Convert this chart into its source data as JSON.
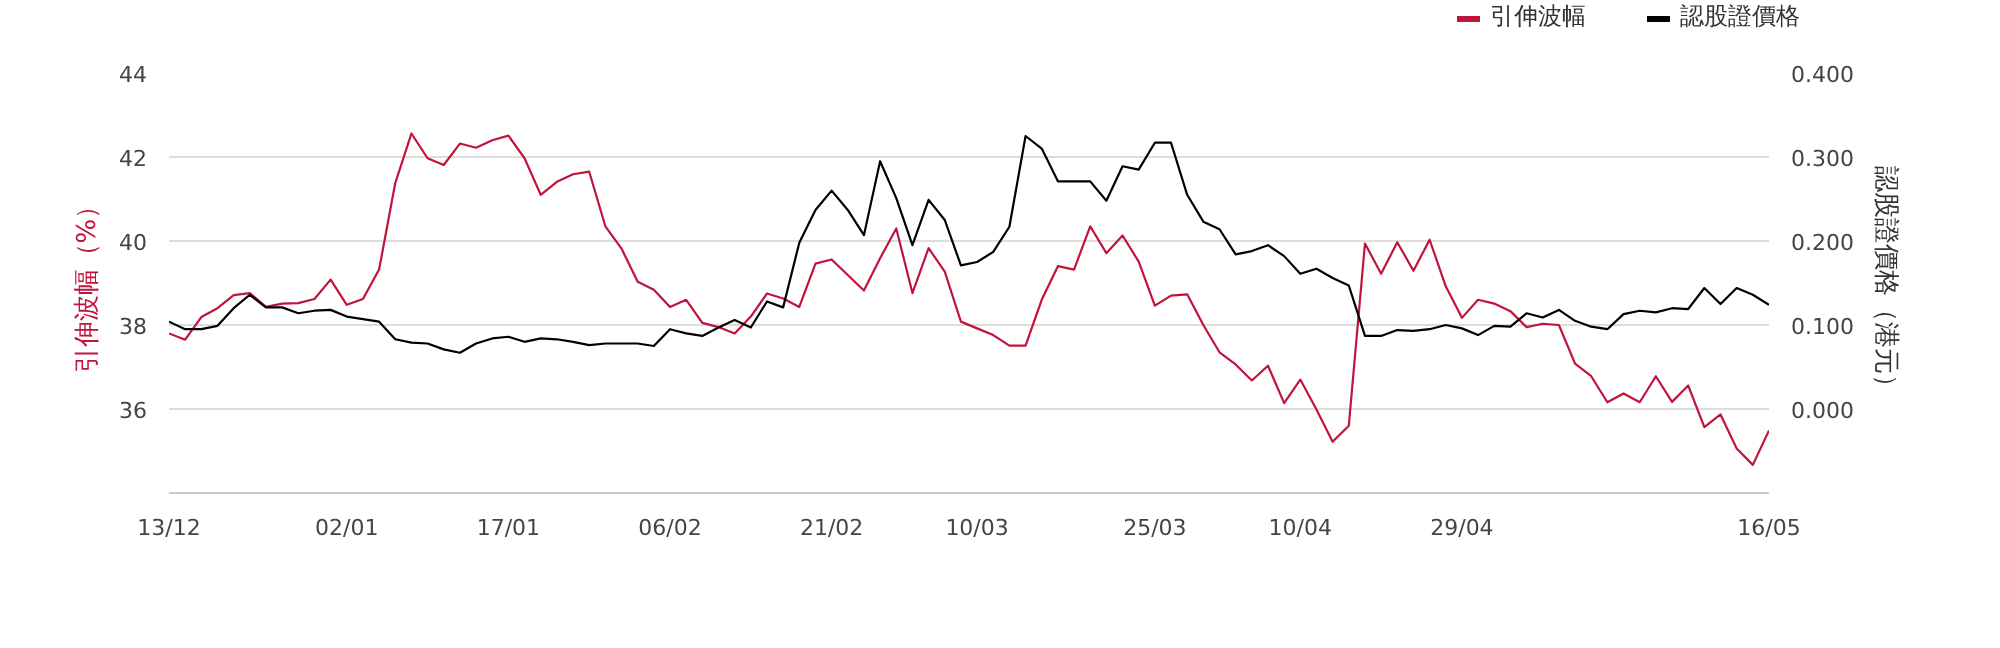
{
  "chart_data": {
    "type": "line",
    "ylabel": "引伸波幅（%）",
    "y2label": "認股證價格（港元）",
    "categories": [
      "13/12",
      null,
      null,
      null,
      null,
      null,
      null,
      null,
      null,
      null,
      null,
      "02/01",
      null,
      null,
      null,
      null,
      null,
      null,
      null,
      null,
      null,
      "17/01",
      null,
      null,
      null,
      null,
      null,
      null,
      null,
      null,
      null,
      "06/02",
      null,
      null,
      null,
      null,
      null,
      null,
      null,
      null,
      null,
      "21/02",
      null,
      null,
      null,
      null,
      null,
      null,
      null,
      null,
      "10/03",
      null,
      null,
      null,
      null,
      null,
      null,
      null,
      null,
      null,
      null,
      "25/03",
      null,
      null,
      null,
      null,
      null,
      null,
      null,
      null,
      "10/04",
      null,
      null,
      null,
      null,
      null,
      null,
      null,
      null,
      null,
      "29/04",
      null,
      null,
      null,
      null,
      null,
      null,
      null,
      null,
      null,
      null,
      null,
      null,
      null,
      null,
      null,
      null,
      null,
      null,
      "16/05"
    ],
    "series": [
      {
        "name": "引伸波幅",
        "color": "#c0143c",
        "values": [
          37.8,
          37.65,
          38.19,
          38.4,
          38.71,
          38.76,
          38.43,
          38.51,
          38.52,
          38.62,
          39.08,
          38.48,
          38.62,
          39.32,
          41.38,
          42.56,
          41.97,
          41.81,
          42.32,
          42.22,
          42.4,
          42.51,
          41.97,
          41.1,
          41.41,
          41.59,
          41.65,
          40.35,
          39.82,
          39.03,
          38.84,
          38.43,
          38.6,
          38.05,
          37.95,
          37.8,
          38.2,
          38.75,
          38.63,
          38.43,
          39.46,
          39.56,
          39.19,
          38.82,
          39.59,
          40.3,
          38.76,
          39.83,
          39.27,
          38.08,
          37.92,
          37.76,
          37.51,
          37.51,
          38.6,
          39.4,
          39.32,
          40.35,
          39.71,
          40.13,
          39.51,
          38.46,
          38.7,
          38.73,
          38.0,
          37.35,
          37.06,
          36.68,
          37.03,
          36.14,
          36.7,
          35.99,
          35.22,
          35.6,
          39.94,
          39.22,
          39.97,
          39.29,
          40.03,
          38.92,
          38.17,
          38.6,
          38.51,
          38.33,
          37.95,
          38.03,
          38.0,
          37.08,
          36.78,
          36.16,
          36.37,
          36.16,
          36.78,
          36.17,
          36.56,
          35.57,
          35.87,
          35.06,
          34.67,
          35.49
        ]
      },
      {
        "name": "認股證價格",
        "color": "#000000",
        "axis": "y2",
        "values": [
          0.104,
          0.095,
          0.095,
          0.099,
          0.12,
          0.136,
          0.121,
          0.121,
          0.114,
          0.117,
          0.118,
          0.11,
          0.107,
          0.104,
          0.083,
          0.079,
          0.078,
          0.071,
          0.067,
          0.078,
          0.084,
          0.086,
          0.08,
          0.084,
          0.083,
          0.08,
          0.076,
          0.078,
          0.078,
          0.078,
          0.075,
          0.095,
          0.09,
          0.087,
          0.097,
          0.106,
          0.097,
          0.128,
          0.121,
          0.198,
          0.237,
          0.26,
          0.237,
          0.207,
          0.295,
          0.251,
          0.195,
          0.249,
          0.225,
          0.171,
          0.175,
          0.187,
          0.217,
          0.325,
          0.31,
          0.271,
          0.271,
          0.271,
          0.248,
          0.289,
          0.285,
          0.317,
          0.317,
          0.255,
          0.223,
          0.214,
          0.184,
          0.188,
          0.195,
          0.182,
          0.161,
          0.167,
          0.156,
          0.147,
          0.087,
          0.087,
          0.094,
          0.093,
          0.095,
          0.1,
          0.096,
          0.088,
          0.099,
          0.098,
          0.114,
          0.109,
          0.118,
          0.105,
          0.098,
          0.095,
          0.113,
          0.117,
          0.115,
          0.12,
          0.119,
          0.144,
          0.125,
          0.144,
          0.136,
          0.124
        ]
      }
    ],
    "ylim": [
      34,
      44
    ],
    "yticks": [
      36,
      38,
      40,
      42,
      44
    ],
    "y2lim": [
      -0.1,
      0.4
    ],
    "y2ticks": [
      {
        "value": 0.0,
        "label": "0.000"
      },
      {
        "value": 0.1,
        "label": "0.100"
      },
      {
        "value": 0.2,
        "label": "0.200"
      },
      {
        "value": 0.3,
        "label": "0.300"
      },
      {
        "value": 0.4,
        "label": "0.400"
      }
    ],
    "grid": "y",
    "legend": "top right",
    "marker": "none",
    "line_style": "solid"
  }
}
